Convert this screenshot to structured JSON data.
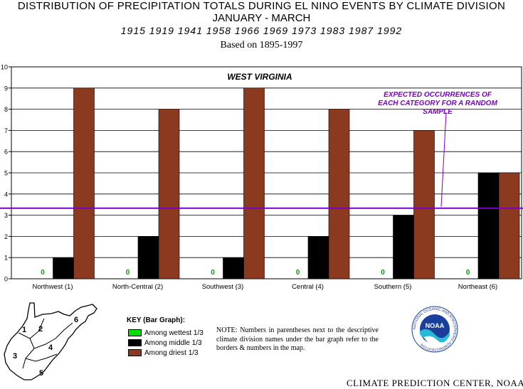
{
  "header": {
    "title_line1": "DISTRIBUTION OF PRECIPITATION TOTALS DURING EL NINO EVENTS BY CLIMATE DIVISION",
    "title_line2": "JANUARY - MARCH",
    "years": "1915 1919 1941 1958 1966 1969 1973 1983 1987 1992",
    "based_on": "Based on 1895-1997"
  },
  "chart_data": {
    "type": "bar",
    "title": "WEST VIRGINIA",
    "categories": [
      "Northwest (1)",
      "North-Central (2)",
      "Southwest (3)",
      "Central (4)",
      "Southern (5)",
      "Northeast (6)"
    ],
    "series": [
      {
        "name": "Among wettest 1/3",
        "color": "#00e000",
        "values": [
          0,
          0,
          0,
          0,
          0,
          0
        ]
      },
      {
        "name": "Among middle 1/3",
        "color": "#000000",
        "values": [
          1,
          2,
          1,
          2,
          3,
          5
        ]
      },
      {
        "name": "Among driest 1/3",
        "color": "#8b3a1f",
        "values": [
          9,
          8,
          9,
          8,
          7,
          5
        ]
      }
    ],
    "zero_label": "0",
    "ylim": [
      0,
      10
    ],
    "yticks": [
      "0",
      "1",
      "2",
      "3",
      "4",
      "5",
      "6",
      "7",
      "8",
      "9",
      "10"
    ],
    "grid": true,
    "expected_line_value": 3.33,
    "expected_line_color": "#7a00c8",
    "annotation": [
      "EXPECTED OCCURRENCES OF",
      "EACH CATEGORY FOR A RANDOM",
      "SAMPLE"
    ]
  },
  "key": {
    "title": "KEY (Bar Graph):",
    "items": [
      {
        "label": "Among wettest 1/3",
        "color": "#00e000"
      },
      {
        "label": "Among middle 1/3",
        "color": "#000000"
      },
      {
        "label": "Among driest 1/3",
        "color": "#8b3a1f"
      }
    ]
  },
  "note": "NOTE:  Numbers in parentheses next to the descriptive climate division names under the bar graph refer to the borders & numbers in the map.",
  "map": {
    "division_numbers": [
      "1",
      "2",
      "3",
      "4",
      "5",
      "6"
    ]
  },
  "logo": {
    "text": "NOAA",
    "ring_text": "NATIONAL OCEANIC AND ATMOSPHERIC ADMINISTRATION"
  },
  "credit": "CLIMATE PREDICTION CENTER, NOAA"
}
